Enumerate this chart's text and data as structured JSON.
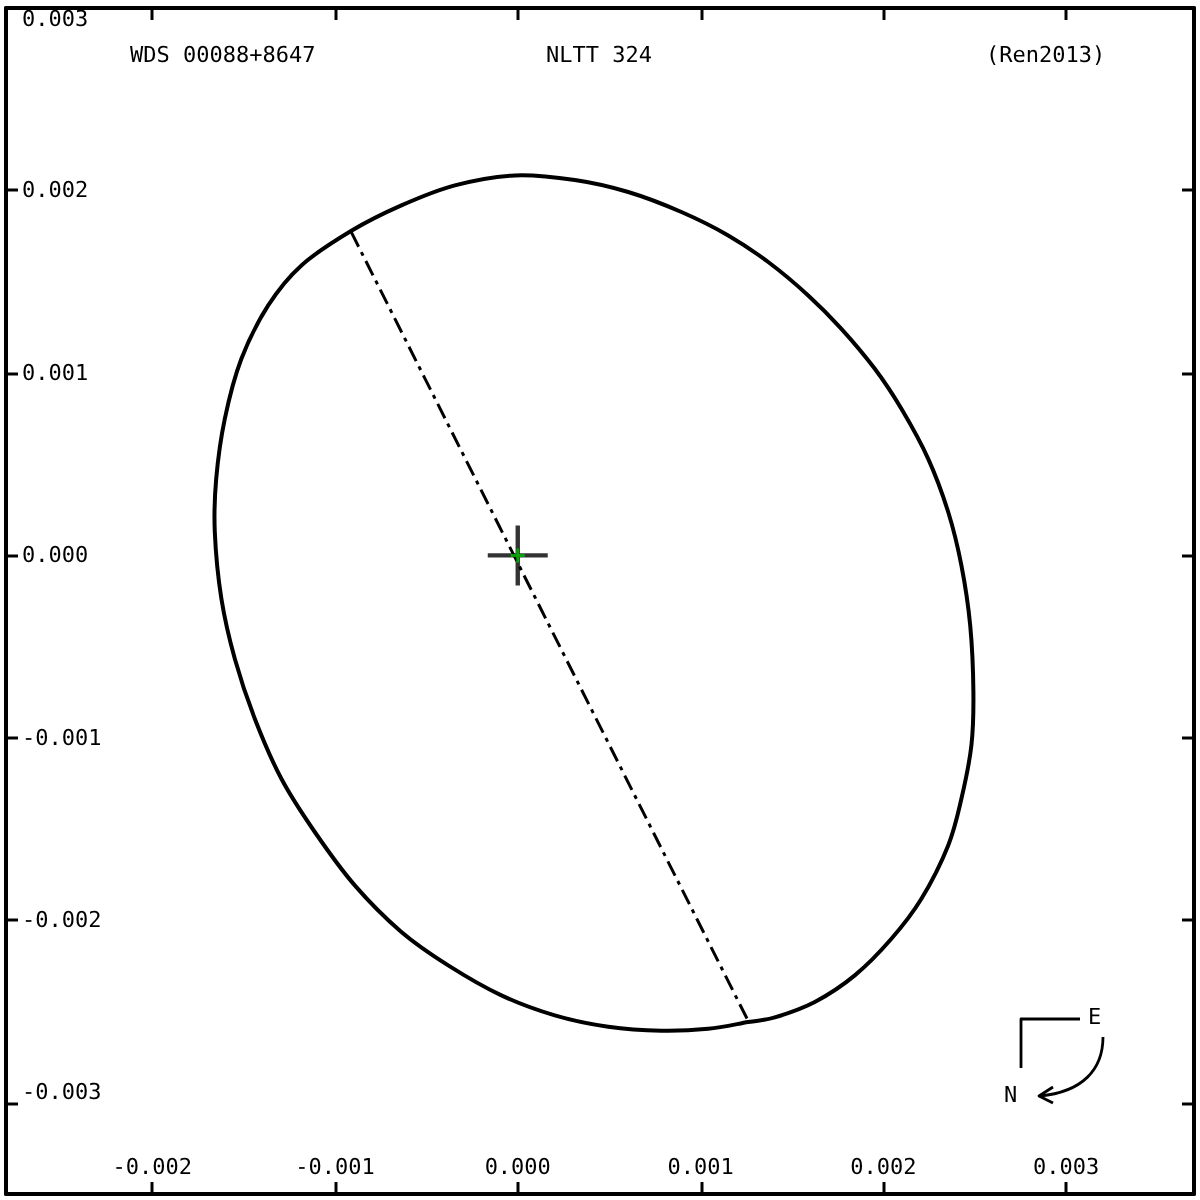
{
  "chart_data": {
    "type": "line",
    "title": "NLTT 324",
    "subtitle": "WDS 00088+8647",
    "annotations": [
      "(Ren2013)",
      "E",
      "N"
    ],
    "xlim": [
      -0.0028,
      0.0037
    ],
    "ylim": [
      -0.0035,
      0.003
    ],
    "xticks": [
      -0.002,
      -0.001,
      {
        "value": 0,
        "label": "0.000"
      },
      0.001,
      0.002,
      0.003
    ],
    "yticks": [
      -0.003,
      -0.002,
      -0.001,
      {
        "value": 0,
        "label": "0.000"
      },
      0.001,
      0.002,
      0.003
    ],
    "marker": "none",
    "series": [
      {
        "color": "#000000",
        "line_style": "dashed",
        "x": [
          -0.00091,
          0.00126
        ],
        "values": [
          0.00177,
          -0.00255
        ]
      },
      {
        "type": "scatter",
        "color": "#000000",
        "marker": "cross",
        "x": [
          0
        ],
        "values": [
          0
        ]
      },
      {
        "type": "scatter",
        "color": "#00c000",
        "marker": "cross",
        "x": [
          0
        ],
        "values": [
          0
        ]
      }
    ]
  }
}
